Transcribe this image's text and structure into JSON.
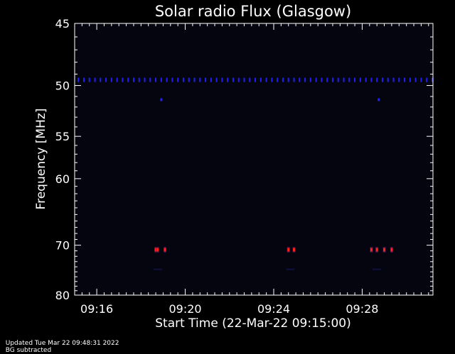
{
  "chart_data": {
    "type": "heatmap",
    "title": "Solar radio Flux (Glasgow)",
    "xlabel": "Start Time (22-Mar-22 09:15:00)",
    "ylabel": "Frequency [MHz]",
    "x_start": "09:15:00",
    "x_end": "09:31:12",
    "x_ticks": [
      "09:16",
      "09:20",
      "09:24",
      "09:28"
    ],
    "y_ticks": [
      45,
      50,
      55,
      60,
      70,
      80
    ],
    "y_scale": "reciprocal",
    "ylim": [
      45,
      80
    ],
    "colors": {
      "background": "#000000",
      "plot_bg": "#050510",
      "strong": "#ff2020",
      "medium": "#2020ff"
    },
    "features": [
      {
        "kind": "periodic-band",
        "freq_mhz": 49.5,
        "period_s": 15,
        "intensity": "medium"
      },
      {
        "kind": "spot",
        "time": "09:18:55",
        "freq_mhz": 51.3,
        "intensity": "medium"
      },
      {
        "kind": "spot",
        "time": "09:28:45",
        "freq_mhz": 51.3,
        "intensity": "medium"
      },
      {
        "kind": "burst",
        "time": "09:18:40",
        "freq_mhz": 70.8,
        "intensity": "strong"
      },
      {
        "kind": "burst",
        "time": "09:18:45",
        "freq_mhz": 70.8,
        "intensity": "strong"
      },
      {
        "kind": "burst",
        "time": "09:19:05",
        "freq_mhz": 70.8,
        "intensity": "strong"
      },
      {
        "kind": "burst",
        "time": "09:24:40",
        "freq_mhz": 70.8,
        "intensity": "strong"
      },
      {
        "kind": "burst",
        "time": "09:24:55",
        "freq_mhz": 70.8,
        "intensity": "strong"
      },
      {
        "kind": "burst",
        "time": "09:28:25",
        "freq_mhz": 70.8,
        "intensity": "strong"
      },
      {
        "kind": "burst",
        "time": "09:28:40",
        "freq_mhz": 70.8,
        "intensity": "strong"
      },
      {
        "kind": "burst",
        "time": "09:29:00",
        "freq_mhz": 70.8,
        "intensity": "strong"
      },
      {
        "kind": "burst",
        "time": "09:29:20",
        "freq_mhz": 70.8,
        "intensity": "strong"
      },
      {
        "kind": "faint",
        "time": "09:18:45",
        "freq_mhz": 74.5,
        "intensity": "weak"
      },
      {
        "kind": "faint",
        "time": "09:24:45",
        "freq_mhz": 74.5,
        "intensity": "weak"
      },
      {
        "kind": "faint",
        "time": "09:28:40",
        "freq_mhz": 74.5,
        "intensity": "weak"
      }
    ]
  },
  "footer": {
    "updated": "Updated Tue Mar 22 09:48:31 2022",
    "note": "BG subtracted"
  }
}
